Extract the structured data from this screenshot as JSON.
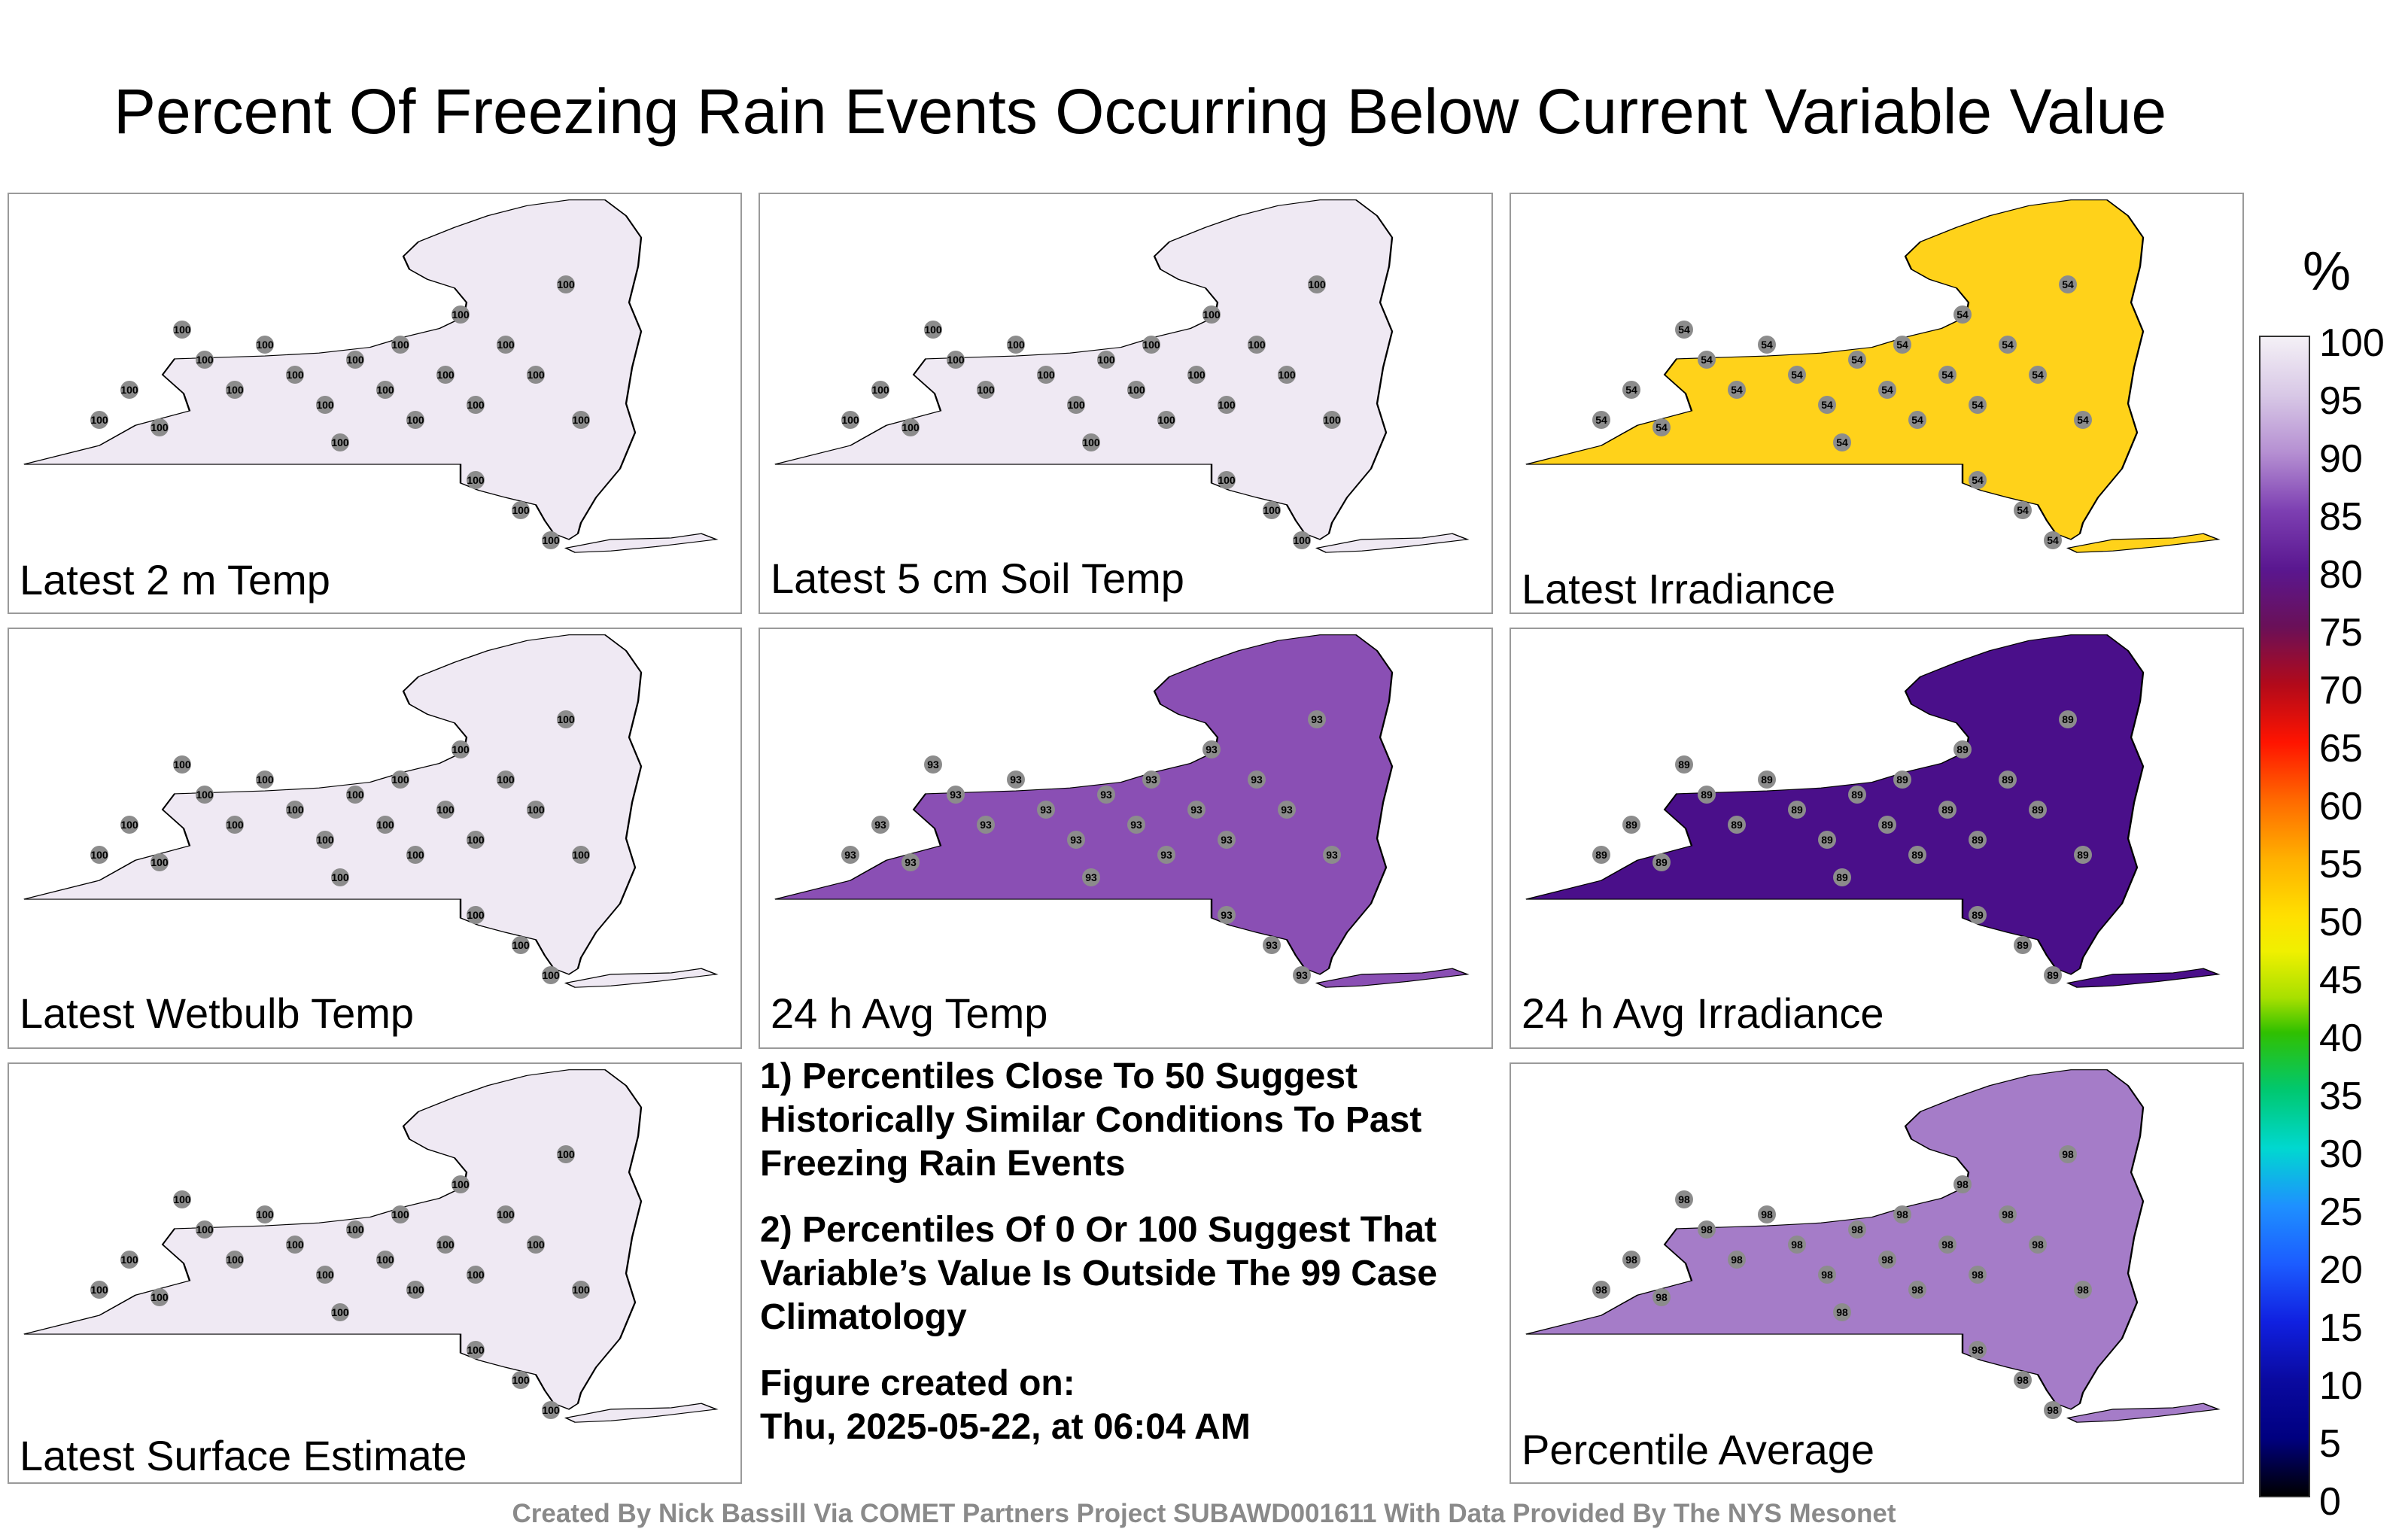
{
  "title": "Percent Of Freezing Rain Events Occurring Below Current Variable Value",
  "panels": [
    {
      "label": "Latest 2 m Temp",
      "fill": "#efe9f3",
      "station_value": "100"
    },
    {
      "label": "Latest 5 cm Soil Temp",
      "fill": "#efe9f3",
      "station_value": "100"
    },
    {
      "label": "Latest Irradiance",
      "fill": "#ffd21a",
      "station_value": "54"
    },
    {
      "label": "Latest Wetbulb Temp",
      "fill": "#efe9f3",
      "station_value": "100"
    },
    {
      "label": "24 h Avg Temp",
      "fill": "#8a4fb4",
      "station_value": "93"
    },
    {
      "label": "24 h Avg Irradiance",
      "fill": "#4a0f8a",
      "station_value": "89"
    },
    {
      "label": "Latest Surface Estimate",
      "fill": "#efe9f3",
      "station_value": "100"
    },
    {
      "label": "Percentile Average",
      "fill": "#a57cc8",
      "station_value": "98"
    }
  ],
  "notes": {
    "note1": "1) Percentiles Close To 50 Suggest Historically Similar Conditions To Past Freezing Rain Events",
    "note2": "2) Percentiles Of 0 Or 100 Suggest That Variable’s Value Is Outside The 99 Case Climatology",
    "created_label": "Figure created on:",
    "created_value": "Thu, 2025-05-22, at 06:04 AM"
  },
  "colorbar": {
    "unit": "%",
    "ticks": [
      "100",
      "95",
      "90",
      "85",
      "80",
      "75",
      "70",
      "65",
      "60",
      "55",
      "50",
      "45",
      "40",
      "35",
      "30",
      "25",
      "20",
      "15",
      "10",
      "5",
      "0"
    ]
  },
  "credit": "Created By Nick Bassill Via COMET Partners Project SUBAWD001611 With Data Provided By The NYS Mesonet"
}
